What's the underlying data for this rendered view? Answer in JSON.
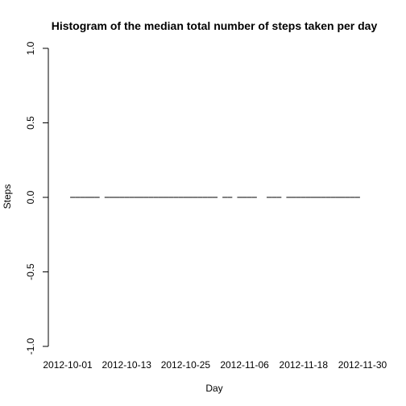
{
  "chart_data": {
    "type": "bar",
    "title": "Histogram of the median total number of steps taken per day",
    "xlabel": "Day",
    "ylabel": "Steps",
    "ylim": [
      -1.0,
      1.0
    ],
    "y_ticks": [
      "-1.0",
      "-0.5",
      "0.0",
      "0.5",
      "1.0"
    ],
    "y_tick_values": [
      -1.0,
      -0.5,
      0.0,
      0.5,
      1.0
    ],
    "x_tick_labels": [
      "2012-10-01",
      "2012-10-13",
      "2012-10-25",
      "2012-11-06",
      "2012-11-18",
      "2012-11-30"
    ],
    "x_tick_days": [
      1,
      13,
      25,
      37,
      49,
      61
    ],
    "grid": false,
    "days": [
      {
        "date": "2012-10-01",
        "value": null
      },
      {
        "date": "2012-10-02",
        "value": 0
      },
      {
        "date": "2012-10-03",
        "value": 0
      },
      {
        "date": "2012-10-04",
        "value": 0
      },
      {
        "date": "2012-10-05",
        "value": 0
      },
      {
        "date": "2012-10-06",
        "value": 0
      },
      {
        "date": "2012-10-07",
        "value": 0
      },
      {
        "date": "2012-10-08",
        "value": null
      },
      {
        "date": "2012-10-09",
        "value": 0
      },
      {
        "date": "2012-10-10",
        "value": 0
      },
      {
        "date": "2012-10-11",
        "value": 0
      },
      {
        "date": "2012-10-12",
        "value": 0
      },
      {
        "date": "2012-10-13",
        "value": 0
      },
      {
        "date": "2012-10-14",
        "value": 0
      },
      {
        "date": "2012-10-15",
        "value": 0
      },
      {
        "date": "2012-10-16",
        "value": 0
      },
      {
        "date": "2012-10-17",
        "value": 0
      },
      {
        "date": "2012-10-18",
        "value": 0
      },
      {
        "date": "2012-10-19",
        "value": 0
      },
      {
        "date": "2012-10-20",
        "value": 0
      },
      {
        "date": "2012-10-21",
        "value": 0
      },
      {
        "date": "2012-10-22",
        "value": 0
      },
      {
        "date": "2012-10-23",
        "value": 0
      },
      {
        "date": "2012-10-24",
        "value": 0
      },
      {
        "date": "2012-10-25",
        "value": 0
      },
      {
        "date": "2012-10-26",
        "value": 0
      },
      {
        "date": "2012-10-27",
        "value": 0
      },
      {
        "date": "2012-10-28",
        "value": 0
      },
      {
        "date": "2012-10-29",
        "value": 0
      },
      {
        "date": "2012-10-30",
        "value": 0
      },
      {
        "date": "2012-10-31",
        "value": 0
      },
      {
        "date": "2012-11-01",
        "value": null
      },
      {
        "date": "2012-11-02",
        "value": 0
      },
      {
        "date": "2012-11-03",
        "value": 0
      },
      {
        "date": "2012-11-04",
        "value": null
      },
      {
        "date": "2012-11-05",
        "value": 0
      },
      {
        "date": "2012-11-06",
        "value": 0
      },
      {
        "date": "2012-11-07",
        "value": 0
      },
      {
        "date": "2012-11-08",
        "value": 0
      },
      {
        "date": "2012-11-09",
        "value": null
      },
      {
        "date": "2012-11-10",
        "value": null
      },
      {
        "date": "2012-11-11",
        "value": 0
      },
      {
        "date": "2012-11-12",
        "value": 0
      },
      {
        "date": "2012-11-13",
        "value": 0
      },
      {
        "date": "2012-11-14",
        "value": null
      },
      {
        "date": "2012-11-15",
        "value": 0
      },
      {
        "date": "2012-11-16",
        "value": 0
      },
      {
        "date": "2012-11-17",
        "value": 0
      },
      {
        "date": "2012-11-18",
        "value": 0
      },
      {
        "date": "2012-11-19",
        "value": 0
      },
      {
        "date": "2012-11-20",
        "value": 0
      },
      {
        "date": "2012-11-21",
        "value": 0
      },
      {
        "date": "2012-11-22",
        "value": 0
      },
      {
        "date": "2012-11-23",
        "value": 0
      },
      {
        "date": "2012-11-24",
        "value": 0
      },
      {
        "date": "2012-11-25",
        "value": 0
      },
      {
        "date": "2012-11-26",
        "value": 0
      },
      {
        "date": "2012-11-27",
        "value": 0
      },
      {
        "date": "2012-11-28",
        "value": 0
      },
      {
        "date": "2012-11-29",
        "value": 0
      },
      {
        "date": "2012-11-30",
        "value": null
      }
    ],
    "bar_color": "#000000"
  }
}
